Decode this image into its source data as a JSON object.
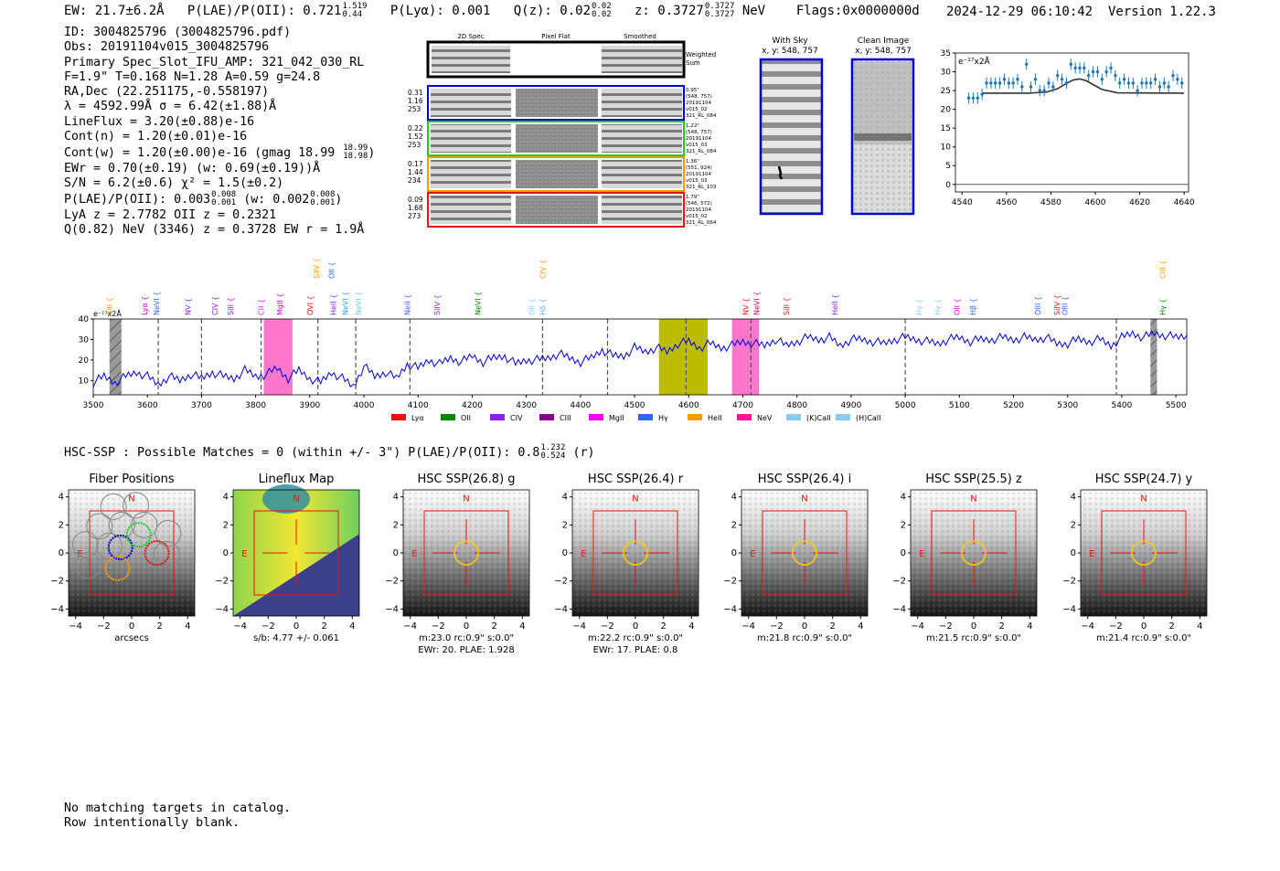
{
  "header": {
    "ew": "EW: 21.7±6.2Å",
    "plae_label": "P(LAE)/P(OII): 0.721",
    "plae_hi": "1.519",
    "plae_lo": "0.44",
    "plya": "P(Lyα): 0.001",
    "qz_label": "Q(z): 0.02",
    "qz_hi": "0.02",
    "qz_lo": "0.02",
    "z_label": "z: 0.3727",
    "z_hi": "0.3727",
    "z_lo": "0.3727",
    "z_line": "NeV",
    "flags": "Flags:0x0000000d",
    "timestamp": "2024-12-29 06:10:42",
    "version": "Version 1.22.3"
  },
  "info": {
    "id": "ID: 3004825796 (3004825796.pdf)",
    "obs": "Obs: 20191104v015_3004825796",
    "primary": "Primary Spec_Slot_IFU_AMP: 321_042_030_RL",
    "fiber": "F=1.9\"  T=0.168  N=1.28  A=0.59  g=24.8",
    "radec": "RA,Dec (22.251175,-0.558197)",
    "lambda": "λ = 4592.99Å  σ = 6.42(±1.88)Å",
    "lineflux": "LineFlux = 3.20(±0.88)e-16",
    "contn": "Cont(n) = 1.20(±0.01)e-16",
    "contw": "Cont(w) = 1.20(±0.00)e-16 (gmag 18.99",
    "contw_hi": "18.99",
    "contw_lo": "18.98",
    "contw_end": ")",
    "ewr": "EWr = 0.70(±0.19) (w: 0.69(±0.19))Å",
    "sn": "S/N = 6.2(±0.6)  χ² = 1.5(±0.2)",
    "plae": "P(LAE)/P(OII): 0.003",
    "plae_hi": "0.008",
    "plae_lo": "0.001",
    "plae_w": "(w: 0.002",
    "plae_w_hi": "0.008",
    "plae_w_lo": "0.001",
    "plae_end": ")",
    "lya": "LyA z = 2.7782  OII z = 0.2321",
    "q": "Q(0.82) NeV (3346) z = 0.3728  EW r = 1.9Å"
  },
  "cutouts": {
    "col_2d": "2D Spec",
    "col_flat": "Pixel Flat",
    "col_smooth": "Smoothed",
    "weighted": "Weighted",
    "sum": "Sum",
    "rows": [
      {
        "color": "#0000dd",
        "left": [
          "0.31",
          "1.16",
          "253"
        ],
        "right": [
          "0.95\"",
          "(548, 757)",
          "20191104",
          "v015_02",
          "321_RL_084"
        ]
      },
      {
        "color": "#22cc22",
        "left": [
          "0.22",
          "1.52",
          "253"
        ],
        "right": [
          "1.22\"",
          "(548, 757)",
          "20191104",
          "v015_03",
          "321_RL_084"
        ]
      },
      {
        "color": "#ff9900",
        "left": [
          "0.17",
          "1.44",
          "234"
        ],
        "right": [
          "1.36\"",
          "(551, 924)",
          "20191104",
          "v015_03",
          "321_RL_103"
        ]
      },
      {
        "color": "#ee1111",
        "left": [
          "0.09",
          "1.68",
          "273"
        ],
        "right": [
          "1.79\"",
          "(546, 572)",
          "20191104",
          "v015_02",
          "321_RL_064"
        ]
      }
    ],
    "with_sky": "With Sky",
    "with_sky_xy": "x, y: 548, 757",
    "clean": "Clean Image",
    "clean_xy": "x, y: 548, 757"
  },
  "chart_data": [
    {
      "type": "scatter",
      "title": "",
      "ylabel_unit": "e⁻¹⁷x2Å",
      "xlim": [
        4537,
        4642
      ],
      "ylim": [
        -2,
        35
      ],
      "xticks": [
        4540,
        4560,
        4580,
        4600,
        4620,
        4640
      ],
      "yticks": [
        0,
        5,
        10,
        15,
        20,
        25,
        30,
        35
      ],
      "points": {
        "x": [
          4543,
          4545,
          4547,
          4549,
          4551,
          4553,
          4555,
          4557,
          4559,
          4561,
          4563,
          4565,
          4567,
          4569,
          4571,
          4573,
          4575,
          4577,
          4579,
          4581,
          4583,
          4585,
          4587,
          4589,
          4591,
          4593,
          4595,
          4597,
          4599,
          4601,
          4603,
          4605,
          4607,
          4609,
          4611,
          4613,
          4615,
          4617,
          4619,
          4621,
          4623,
          4625,
          4627,
          4629,
          4631,
          4633,
          4635,
          4637,
          4639
        ],
        "y": [
          23,
          23,
          23,
          24,
          27,
          27,
          27,
          27,
          28,
          27,
          27,
          28,
          26,
          32,
          26,
          28,
          25,
          25,
          27,
          26,
          29,
          28,
          27,
          32,
          31,
          31,
          31,
          29,
          30,
          30,
          28,
          30,
          31,
          29,
          27,
          28,
          27,
          27,
          25,
          27,
          27,
          27,
          28,
          26,
          27,
          26,
          29,
          28,
          27
        ]
      },
      "model": {
        "x": [
          4549,
          4570,
          4578,
          4583,
          4587,
          4590,
          4593,
          4596,
          4599,
          4603,
          4610,
          4640
        ],
        "y": [
          24.3,
          24.3,
          24.6,
          25.5,
          26.9,
          27.8,
          28.1,
          27.6,
          26.6,
          25.3,
          24.4,
          24.3
        ]
      },
      "zero_line": 0
    },
    {
      "type": "line",
      "title": "",
      "ylabel_unit": "e⁻¹⁷x2Å",
      "xlim": [
        3500,
        5520
      ],
      "ylim": [
        3,
        40
      ],
      "xticks": [
        3500,
        3600,
        3700,
        3800,
        3900,
        4000,
        4100,
        4200,
        4300,
        4400,
        4500,
        4600,
        4700,
        4800,
        4900,
        5000,
        5100,
        5200,
        5300,
        5400,
        5500
      ],
      "yticks": [
        10,
        20,
        30,
        40
      ],
      "spectrum": {
        "x": [
          3500,
          3520,
          3540,
          3560,
          3580,
          3600,
          3620,
          3640,
          3660,
          3680,
          3700,
          3720,
          3740,
          3760,
          3780,
          3800,
          3820,
          3840,
          3860,
          3880,
          3900,
          3920,
          3940,
          3960,
          3980,
          4000,
          4020,
          4040,
          4060,
          4080,
          4100,
          4120,
          4140,
          4160,
          4180,
          4200,
          4220,
          4240,
          4260,
          4280,
          4300,
          4320,
          4340,
          4360,
          4380,
          4400,
          4420,
          4440,
          4460,
          4480,
          4500,
          4520,
          4540,
          4560,
          4580,
          4600,
          4620,
          4640,
          4660,
          4680,
          4700,
          4720,
          4740,
          4760,
          4780,
          4800,
          4820,
          4840,
          4860,
          4880,
          4900,
          4920,
          4940,
          4960,
          4980,
          5000,
          5020,
          5040,
          5060,
          5080,
          5100,
          5120,
          5140,
          5160,
          5180,
          5200,
          5220,
          5240,
          5260,
          5280,
          5300,
          5320,
          5340,
          5360,
          5380,
          5400,
          5420,
          5440,
          5460,
          5480,
          5500,
          5520
        ],
        "y": [
          9,
          12,
          9,
          12,
          14,
          12,
          8,
          12,
          10,
          13,
          11,
          14,
          12,
          11,
          15,
          12,
          13,
          16,
          11,
          15,
          11,
          9,
          14,
          11,
          7,
          17,
          12,
          14,
          11,
          18,
          16,
          20,
          18,
          21,
          19,
          22,
          19,
          21,
          22,
          18,
          20,
          20,
          21,
          23,
          21,
          19,
          21,
          25,
          22,
          22,
          26,
          24,
          26,
          24,
          28,
          29,
          26,
          28,
          26,
          27,
          29,
          28,
          27,
          30,
          27,
          29,
          31,
          30,
          31,
          27,
          30,
          30,
          29,
          28,
          30,
          31,
          30,
          29,
          28,
          30,
          31,
          29,
          30,
          30,
          31,
          30,
          31,
          30,
          31,
          28,
          28,
          30,
          29,
          30,
          27,
          31,
          33,
          31,
          33,
          32,
          31,
          32
        ]
      },
      "dashed_lines": [
        3620,
        3700,
        3810,
        3915,
        3985,
        4085,
        4330,
        4450,
        4595,
        4715,
        5000,
        5390
      ],
      "shaded": [
        {
          "from": 3530,
          "to": 3552,
          "color": "#999999",
          "hatched": true
        },
        {
          "from": 3815,
          "to": 3868,
          "color": "#ff77cc"
        },
        {
          "from": 4545,
          "to": 4635,
          "color": "#bbbb00"
        },
        {
          "from": 4680,
          "to": 4730,
          "color": "#ff77cc"
        },
        {
          "from": 5453,
          "to": 5465,
          "color": "#999999",
          "hatched": true
        }
      ],
      "line_labels": [
        {
          "text": "SiII",
          "x": 3535,
          "tier": 1,
          "color": "#ff9900"
        },
        {
          "text": "Lyα",
          "x": 3600,
          "tier": 1,
          "color": "#cc00cc"
        },
        {
          "text": "NeVI",
          "x": 3622,
          "tier": 1,
          "color": "#3366ff"
        },
        {
          "text": "NV",
          "x": 3680,
          "tier": 1,
          "color": "#8822ee"
        },
        {
          "text": "CIV",
          "x": 3730,
          "tier": 1,
          "color": "#8822ee"
        },
        {
          "text": "SiII",
          "x": 3758,
          "tier": 1,
          "color": "#cc00cc"
        },
        {
          "text": "CII",
          "x": 3815,
          "tier": 1,
          "color": "#ff00ff"
        },
        {
          "text": "MgII",
          "x": 3850,
          "tier": 1,
          "color": "#cc00cc"
        },
        {
          "text": "SiIV",
          "x": 3917,
          "tier": 3,
          "color": "#ff9900"
        },
        {
          "text": "OII",
          "x": 3945,
          "tier": 3,
          "color": "#3366ff"
        },
        {
          "text": "OVI",
          "x": 3905,
          "tier": 1,
          "color": "#ee1111"
        },
        {
          "text": "HeII",
          "x": 3948,
          "tier": 1,
          "color": "#8822ee"
        },
        {
          "text": "NeVI",
          "x": 3970,
          "tier": 1,
          "color": "#3399ff"
        },
        {
          "text": "NeVI",
          "x": 3995,
          "tier": 1,
          "color": "#66ccee"
        },
        {
          "text": "NeII",
          "x": 4085,
          "tier": 1,
          "color": "#3366ff"
        },
        {
          "text": "SiIV",
          "x": 4140,
          "tier": 1,
          "color": "#8822ee"
        },
        {
          "text": "NeVI",
          "x": 4215,
          "tier": 1,
          "color": "#008800"
        },
        {
          "text": "CIV",
          "x": 4335,
          "tier": 3,
          "color": "#ff9900"
        },
        {
          "text": "OII",
          "x": 4315,
          "tier": 1,
          "color": "#88ccee"
        },
        {
          "text": "Hδ",
          "x": 4335,
          "tier": 1,
          "color": "#66aaee"
        },
        {
          "text": "NV",
          "x": 4710,
          "tier": 1,
          "color": "#ee1111"
        },
        {
          "text": "NeVI",
          "x": 4730,
          "tier": 1,
          "color": "#cc0066"
        },
        {
          "text": "SiII",
          "x": 4785,
          "tier": 1,
          "color": "#ee1111"
        },
        {
          "text": "HeII",
          "x": 4875,
          "tier": 1,
          "color": "#8822ee"
        },
        {
          "text": "Hγ",
          "x": 5030,
          "tier": 1,
          "color": "#88ccee"
        },
        {
          "text": "Hγ",
          "x": 5065,
          "tier": 1,
          "color": "#88ccee"
        },
        {
          "text": "OII",
          "x": 5100,
          "tier": 1,
          "color": "#cc00cc"
        },
        {
          "text": "Hβ",
          "x": 5130,
          "tier": 1,
          "color": "#3366ff"
        },
        {
          "text": "OIII",
          "x": 5250,
          "tier": 1,
          "color": "#3366ff"
        },
        {
          "text": "SiIV",
          "x": 5285,
          "tier": 1,
          "color": "#ee1111"
        },
        {
          "text": "OIII",
          "x": 5300,
          "tier": 1,
          "color": "#3366ff"
        },
        {
          "text": "CIII",
          "x": 5480,
          "tier": 3,
          "color": "#ff9900"
        },
        {
          "text": "Hγ",
          "x": 5480,
          "tier": 1,
          "color": "#008800"
        }
      ],
      "legend": [
        {
          "label": "Lyα",
          "color": "#ee1111"
        },
        {
          "label": "OII",
          "color": "#008800"
        },
        {
          "label": "CIV",
          "color": "#8822ee"
        },
        {
          "label": "CIII",
          "color": "#880088"
        },
        {
          "label": "MgII",
          "color": "#ff00ff"
        },
        {
          "label": "Hγ",
          "color": "#3366ee"
        },
        {
          "label": "HeII",
          "color": "#ff9900"
        },
        {
          "label": "NeV",
          "color": "#ff1199"
        },
        {
          "label": "(K)CaII",
          "color": "#88ccee"
        },
        {
          "label": "(H)CaII",
          "color": "#88ccee"
        }
      ]
    }
  ],
  "hsc": {
    "header": "HSC-SSP : Possible Matches = 0 (within +/- 3\")  P(LAE)/P(OII): 0.8",
    "header_hi": "1.232",
    "header_lo": "0.524",
    "header_end": "(r)",
    "panels": [
      {
        "title": "Fiber Positions",
        "cap1": "arcsecs",
        "cap2": "",
        "kind": "fiber"
      },
      {
        "title": "Lineflux Map",
        "cap1": "s/b: 4.77 +/- 0.061",
        "cap2": "",
        "kind": "flux"
      },
      {
        "title": "HSC SSP(26.8) g",
        "cap1": "m:23.0 rc:0.9\"  s:0.0\"",
        "cap2": "EWr: 20. PLAE: 1.928",
        "kind": "img"
      },
      {
        "title": "HSC SSP(26.4) r",
        "cap1": "m:22.2 rc:0.9\"  s:0.0\"",
        "cap2": "EWr: 17. PLAE: 0.8",
        "kind": "img"
      },
      {
        "title": "HSC SSP(26.4) i",
        "cap1": "m:21.8 rc:0.9\"  s:0.0\"",
        "cap2": "",
        "kind": "img"
      },
      {
        "title": "HSC SSP(25.5) z",
        "cap1": "m:21.5 rc:0.9\"  s:0.0\"",
        "cap2": "",
        "kind": "img"
      },
      {
        "title": "HSC SSP(24.7) y",
        "cap1": "m:21.4 rc:0.9\"  s:0.0\"",
        "cap2": "",
        "kind": "img"
      }
    ],
    "north": "N",
    "east": "E",
    "ticks": [
      "−4",
      "−2",
      "0",
      "2",
      "4"
    ]
  },
  "footer": {
    "line1": "No matching targets in catalog.",
    "line2": "Row intentionally blank."
  }
}
